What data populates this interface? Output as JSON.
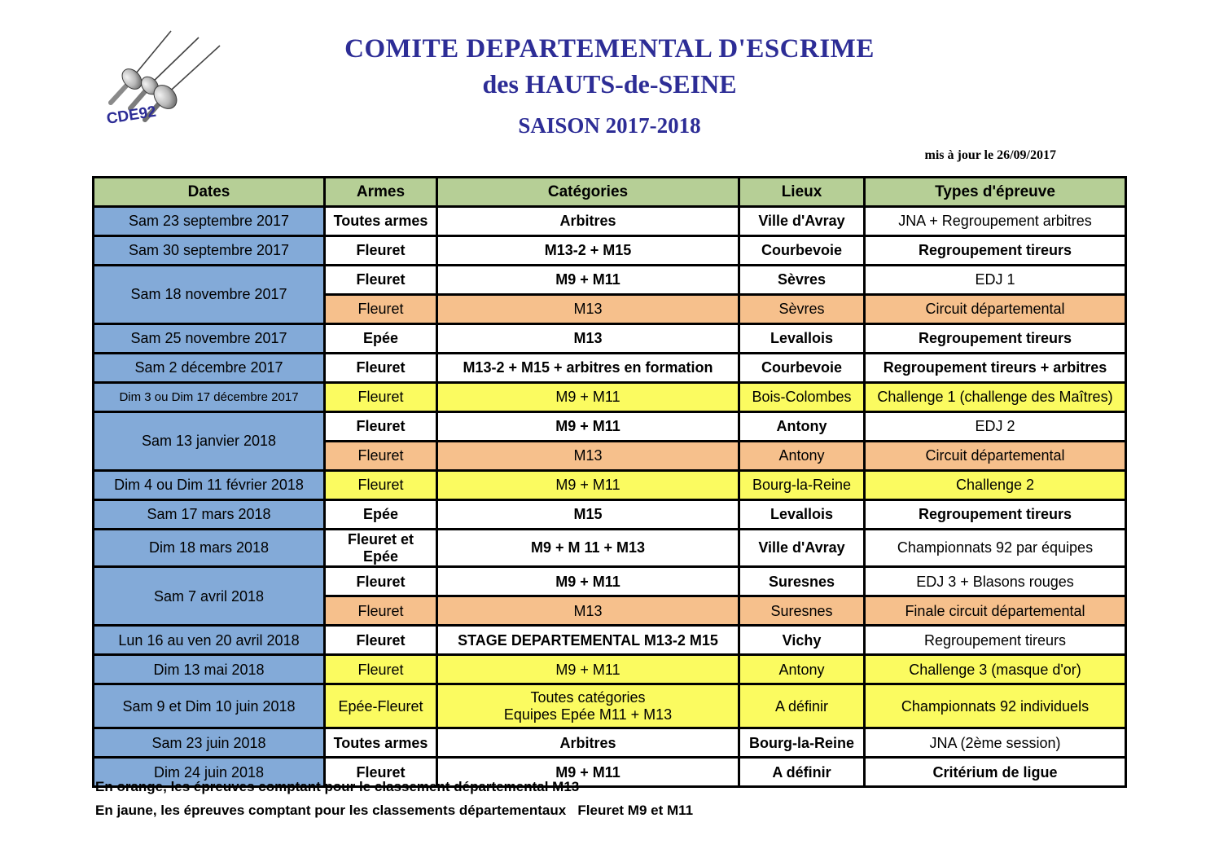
{
  "logo": {
    "text": "CDE92"
  },
  "title": {
    "line1": "COMITE DEPARTEMENTAL D'ESCRIME",
    "line2": "des HAUTS-de-SEINE",
    "line3": "SAISON 2017-2018",
    "color": "#2d2d96"
  },
  "updated": "mis à jour le 26/09/2017",
  "table": {
    "headers": [
      "Dates",
      "Armes",
      "Catégories",
      "Lieux",
      "Types d'épreuve"
    ],
    "colors": {
      "header": "#b6cf96",
      "date": "#83aad8",
      "white": "#ffffff",
      "orange": "#f6c08c",
      "yellow": "#fbfb60"
    },
    "rows": [
      {
        "date": "Sam 23 septembre 2017",
        "arme": "Toutes armes",
        "cat": "Arbitres",
        "lieu": "Ville d'Avray",
        "type": "JNA +  Regroupement arbitres",
        "bg": "white",
        "bold": [
          "arme",
          "cat",
          "lieu"
        ]
      },
      {
        "date": "Sam 30 septembre 2017",
        "arme": "Fleuret",
        "cat": "M13-2 + M15",
        "lieu": "Courbevoie",
        "type": "Regroupement tireurs",
        "bg": "white",
        "bold": [
          "arme",
          "cat",
          "lieu",
          "type"
        ]
      },
      {
        "date": "Sam 18 novembre 2017",
        "date_span": 2,
        "arme": "Fleuret",
        "cat": "M9 + M11",
        "lieu": "Sèvres",
        "type": "EDJ 1",
        "bg": "white",
        "bold": [
          "arme",
          "cat",
          "lieu"
        ]
      },
      {
        "arme": "Fleuret",
        "cat": "M13",
        "lieu": "Sèvres",
        "type": "Circuit départemental",
        "bg": "orange",
        "bold": [],
        "cont": true
      },
      {
        "date": "Sam 25 novembre 2017",
        "arme": "Epée",
        "cat": "M13",
        "lieu": "Levallois",
        "type": "Regroupement tireurs",
        "bg": "white",
        "bold": [
          "arme",
          "cat",
          "lieu",
          "type"
        ]
      },
      {
        "date": "Sam 2 décembre 2017",
        "arme": "Fleuret",
        "cat": "M13-2  + M15 + arbitres en formation",
        "lieu": "Courbevoie",
        "type": "Regroupement tireurs + arbitres",
        "bg": "white",
        "bold": [
          "arme",
          "cat",
          "lieu",
          "type"
        ]
      },
      {
        "date": "Dim 3 ou Dim 17 décembre 2017",
        "date_small": true,
        "arme": "Fleuret",
        "cat": "M9 + M11",
        "lieu": "Bois-Colombes",
        "type": "Challenge 1 (challenge des Maîtres)",
        "bg": "yellow",
        "bold": []
      },
      {
        "date": "Sam 13 janvier 2018",
        "date_span": 2,
        "arme": "Fleuret",
        "cat": "M9 + M11",
        "lieu": "Antony",
        "type": "EDJ 2",
        "bg": "white",
        "bold": [
          "arme",
          "cat",
          "lieu"
        ]
      },
      {
        "arme": "Fleuret",
        "cat": "M13",
        "lieu": "Antony",
        "type": "Circuit départemental",
        "bg": "orange",
        "bold": [],
        "cont": true
      },
      {
        "date": "Dim 4 ou Dim 11 février 2018",
        "arme": "Fleuret",
        "cat": "M9 + M11",
        "lieu": "Bourg-la-Reine",
        "type": "Challenge 2",
        "bg": "yellow",
        "bold": []
      },
      {
        "date": "Sam 17 mars 2018",
        "arme": "Epée",
        "cat": "M15",
        "lieu": "Levallois",
        "type": "Regroupement tireurs",
        "bg": "white",
        "bold": [
          "arme",
          "cat",
          "lieu",
          "type"
        ]
      },
      {
        "date": "Dim 18 mars 2018",
        "arme": "Fleuret et Epée",
        "arme_small": true,
        "cat": "M9 + M 11 + M13",
        "lieu": "Ville d'Avray",
        "type": "Championnats 92 par équipes",
        "bg": "white",
        "bold": [
          "arme",
          "cat",
          "lieu"
        ]
      },
      {
        "date": "Sam 7 avril 2018",
        "date_span": 2,
        "arme": "Fleuret",
        "cat": "M9 + M11",
        "lieu": "Suresnes",
        "type": "EDJ 3 + Blasons rouges",
        "bg": "white",
        "bold": [
          "arme",
          "cat",
          "lieu"
        ]
      },
      {
        "arme": "Fleuret",
        "cat": "M13",
        "lieu": "Suresnes",
        "type": "Finale circuit départemental",
        "bg": "orange",
        "bold": [],
        "cont": true
      },
      {
        "date": "Lun 16 au ven 20 avril 2018",
        "arme": "Fleuret",
        "cat": "STAGE DEPARTEMENTAL M13-2  M15",
        "lieu": "Vichy",
        "type": "Regroupement tireurs",
        "bg": "white",
        "bold": [
          "arme",
          "cat",
          "lieu"
        ]
      },
      {
        "date": "Dim 13 mai 2018",
        "arme": "Fleuret",
        "cat": "M9 + M11",
        "lieu": "Antony",
        "type": "Challenge 3 (masque d'or)",
        "bg": "yellow",
        "bold": []
      },
      {
        "date": "Sam 9 et Dim 10 juin 2018",
        "arme": "Epée-Fleuret",
        "cat": "Toutes catégories",
        "cat2": "Equipes Epée M11 + M13",
        "lieu": "A définir",
        "type": "Championnats 92 individuels",
        "bg": "yellow",
        "bold": [],
        "tall": true
      },
      {
        "date": "Sam 23 juin 2018",
        "arme": "Toutes armes",
        "cat": "Arbitres",
        "lieu": "Bourg-la-Reine",
        "type": "JNA (2ème session)",
        "bg": "white",
        "bold": [
          "arme",
          "cat",
          "lieu"
        ]
      },
      {
        "date": "Dim 24 juin 2018",
        "arme": "Fleuret",
        "cat": "M9 + M11",
        "lieu": "A définir",
        "type": "Critérium de ligue",
        "bg": "white",
        "bold": [
          "arme",
          "cat",
          "lieu",
          "type"
        ]
      }
    ]
  },
  "notes": [
    "En orange, les épreuves comptant pour le classement départemental M13",
    "En jaune, les épreuves comptant pour les classements départementaux   Fleuret M9 et M11"
  ]
}
